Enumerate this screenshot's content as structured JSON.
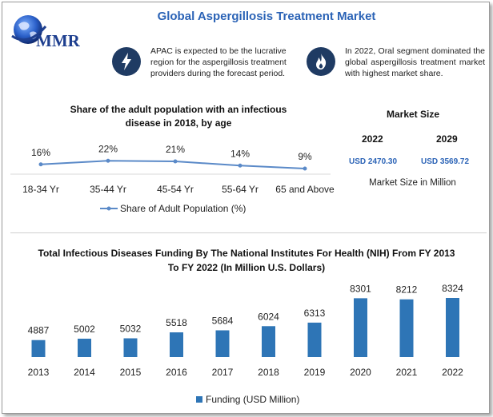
{
  "header": {
    "title": "Global Aspergillosis Treatment Market",
    "logo_text": "MMR"
  },
  "notes": [
    {
      "icon": "lightning-icon",
      "text": "APAC is expected to be the lucrative region for the aspergillosis treatment providers during the forecast period."
    },
    {
      "icon": "flame-icon",
      "text": "In 2022, Oral segment dominated the global aspergillosis treatment market with highest market share."
    }
  ],
  "market_size": {
    "title": "Market Size",
    "years": [
      "2022",
      "2029"
    ],
    "values": [
      "USD 2470.30",
      "USD 3569.72"
    ],
    "caption": "Market Size in Million"
  },
  "colors": {
    "accent": "#2b63b6",
    "bar": "#2e75b6",
    "line": "#5b8ac8",
    "icon_bg": "#1f3b63"
  },
  "chart_data": [
    {
      "type": "line",
      "title": "Share of the adult population with an infectious disease in 2018, by age",
      "categories": [
        "18-34 Yr",
        "35-44 Yr",
        "45-54 Yr",
        "55-64 Yr",
        "65 and Above"
      ],
      "series": [
        {
          "name": "Share of Adult Population (%)",
          "values": [
            16,
            22,
            21,
            14,
            9
          ],
          "labels": [
            "16%",
            "22%",
            "21%",
            "14%",
            "9%"
          ]
        }
      ],
      "legend": "bottom"
    },
    {
      "type": "bar",
      "title": "Total Infectious Diseases Funding By The National Institutes For Health (NIH) From FY 2013 To FY 2022 (In Million U.S. Dollars)",
      "categories": [
        "2013",
        "2014",
        "2015",
        "2016",
        "2017",
        "2018",
        "2019",
        "2020",
        "2021",
        "2022"
      ],
      "series": [
        {
          "name": "Funding (USD Million)",
          "values": [
            4887,
            5002,
            5032,
            5518,
            5684,
            6024,
            6313,
            8301,
            8212,
            8324
          ]
        }
      ],
      "legend": "bottom"
    }
  ]
}
